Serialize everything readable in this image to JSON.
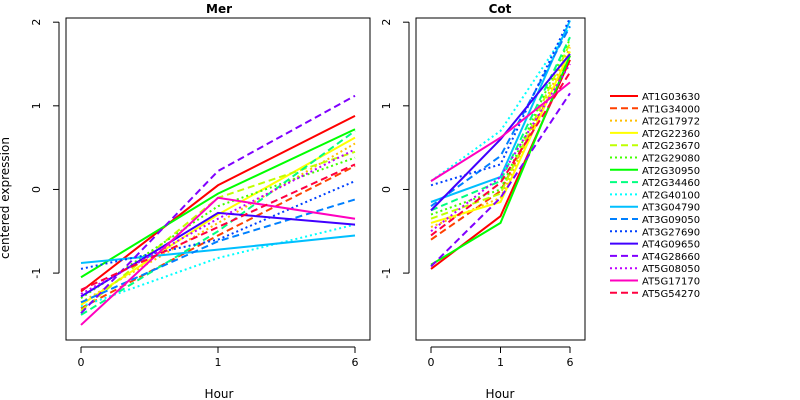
{
  "chart_data": {
    "type": "line",
    "ylabel": "centered expression",
    "x": [
      "0",
      "1",
      "6"
    ],
    "ylim": [
      -1.8,
      2.05
    ],
    "yticks": [
      -1,
      0,
      1,
      2
    ],
    "grid": false,
    "legend": "right",
    "panels": [
      {
        "title": "Mer",
        "xlabel": "Hour",
        "series": [
          {
            "name": "AT1G03630",
            "values": [
              -1.22,
              0.05,
              0.88
            ]
          },
          {
            "name": "AT1G34000",
            "values": [
              -1.42,
              -0.55,
              0.28
            ]
          },
          {
            "name": "AT2G17972",
            "values": [
              -1.35,
              -0.4,
              0.55
            ]
          },
          {
            "name": "AT2G22360",
            "values": [
              -1.38,
              -0.3,
              0.62
            ]
          },
          {
            "name": "AT2G23670",
            "values": [
              -1.45,
              -0.1,
              0.45
            ]
          },
          {
            "name": "AT2G29080",
            "values": [
              -1.3,
              -0.2,
              0.38
            ]
          },
          {
            "name": "AT2G30950",
            "values": [
              -1.05,
              -0.05,
              0.72
            ]
          },
          {
            "name": "AT2G34460",
            "values": [
              -1.5,
              -0.5,
              0.7
            ]
          },
          {
            "name": "AT2G40100",
            "values": [
              -1.4,
              -0.82,
              -0.42
            ]
          },
          {
            "name": "AT3G04790",
            "values": [
              -0.88,
              -0.72,
              -0.55
            ]
          },
          {
            "name": "AT3G09050",
            "values": [
              -1.35,
              -0.62,
              -0.12
            ]
          },
          {
            "name": "AT3G27690",
            "values": [
              -0.95,
              -0.6,
              0.1
            ]
          },
          {
            "name": "AT4G09650",
            "values": [
              -1.28,
              -0.28,
              -0.42
            ]
          },
          {
            "name": "AT4G28660",
            "values": [
              -1.48,
              0.22,
              1.12
            ]
          },
          {
            "name": "AT5G08050",
            "values": [
              -1.25,
              -0.35,
              0.48
            ]
          },
          {
            "name": "AT5G17170",
            "values": [
              -1.62,
              -0.1,
              -0.35
            ]
          },
          {
            "name": "AT5G54270",
            "values": [
              -1.2,
              -0.45,
              0.3
            ]
          }
        ]
      },
      {
        "title": "Cot",
        "xlabel": "Hour",
        "series": [
          {
            "name": "AT1G03630",
            "values": [
              -0.95,
              -0.32,
              1.55
            ]
          },
          {
            "name": "AT1G34000",
            "values": [
              -0.6,
              -0.02,
              1.6
            ]
          },
          {
            "name": "AT2G17972",
            "values": [
              -0.45,
              -0.1,
              1.7
            ]
          },
          {
            "name": "AT2G22360",
            "values": [
              -0.4,
              -0.15,
              1.65
            ]
          },
          {
            "name": "AT2G23670",
            "values": [
              -0.35,
              -0.05,
              1.75
            ]
          },
          {
            "name": "AT2G29080",
            "values": [
              -0.3,
              0.0,
              1.8
            ]
          },
          {
            "name": "AT2G30950",
            "values": [
              -0.9,
              -0.4,
              1.6
            ]
          },
          {
            "name": "AT2G34460",
            "values": [
              -0.25,
              0.1,
              1.82
            ]
          },
          {
            "name": "AT2G40100",
            "values": [
              0.1,
              0.7,
              1.95
            ]
          },
          {
            "name": "AT3G04790",
            "values": [
              -0.15,
              0.15,
              2.02
            ]
          },
          {
            "name": "AT3G09050",
            "values": [
              -0.2,
              0.4,
              1.95
            ]
          },
          {
            "name": "AT3G27690",
            "values": [
              0.05,
              0.3,
              2.05
            ]
          },
          {
            "name": "AT4G09650",
            "values": [
              -0.25,
              0.6,
              1.62
            ]
          },
          {
            "name": "AT4G28660",
            "values": [
              -0.92,
              -0.1,
              1.15
            ]
          },
          {
            "name": "AT5G08050",
            "values": [
              -0.5,
              0.15,
              1.5
            ]
          },
          {
            "name": "AT5G17170",
            "values": [
              0.1,
              0.62,
              1.28
            ]
          },
          {
            "name": "AT5G54270",
            "values": [
              -0.55,
              0.08,
              1.4
            ]
          }
        ]
      }
    ]
  },
  "series_styles": [
    {
      "color": "#FF0000",
      "dash": "solid"
    },
    {
      "color": "#FF4000",
      "dash": "dashed"
    },
    {
      "color": "#FFBF00",
      "dash": "dotted"
    },
    {
      "color": "#FFFF00",
      "dash": "solid"
    },
    {
      "color": "#BFFF00",
      "dash": "dashed"
    },
    {
      "color": "#40FF00",
      "dash": "dotted"
    },
    {
      "color": "#00FF00",
      "dash": "solid"
    },
    {
      "color": "#00FF80",
      "dash": "dashed"
    },
    {
      "color": "#00FFFF",
      "dash": "dotted"
    },
    {
      "color": "#00BFFF",
      "dash": "solid"
    },
    {
      "color": "#0080FF",
      "dash": "dashed"
    },
    {
      "color": "#0040FF",
      "dash": "dotted"
    },
    {
      "color": "#4000FF",
      "dash": "solid"
    },
    {
      "color": "#8000FF",
      "dash": "dashed"
    },
    {
      "color": "#BF00FF",
      "dash": "dotted"
    },
    {
      "color": "#FF00BF",
      "dash": "solid"
    },
    {
      "color": "#FF0040",
      "dash": "dashed"
    }
  ]
}
